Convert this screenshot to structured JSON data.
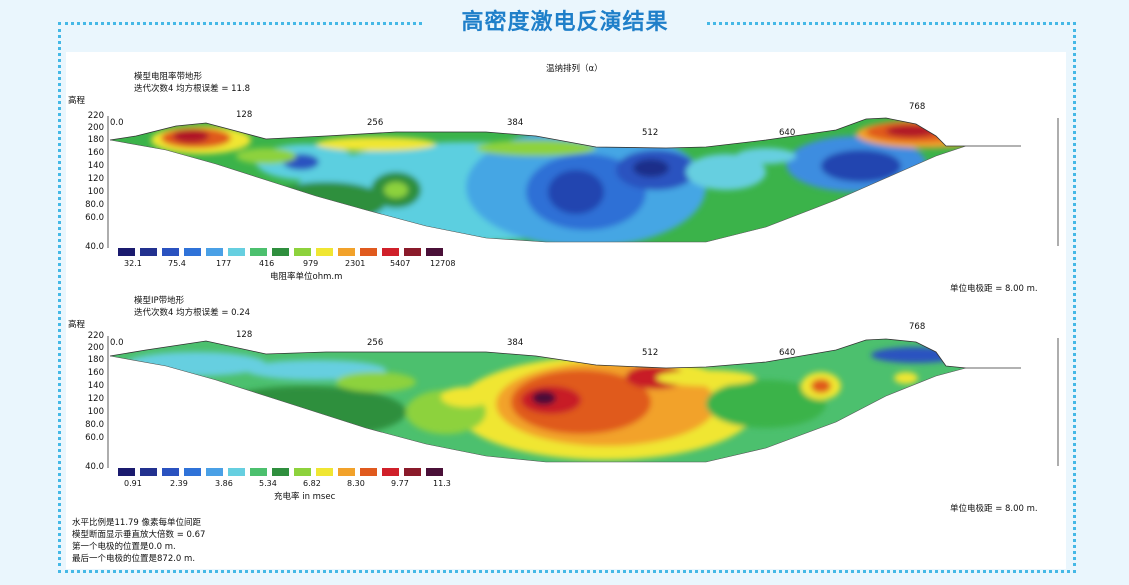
{
  "header": {
    "title": "高密度激电反演结果"
  },
  "figure": {
    "top_caption": "温纳排列（α）",
    "panel1": {
      "model_name": "模型电阻率带地形",
      "iteration": "迭代次数4 均方根误差 = 11.8",
      "elevation_label": "高程",
      "unit_label": "电阻率单位ohm.m",
      "spacing": "单位电极距 = 8.00 m."
    },
    "panel2": {
      "model_name": "模型IP带地形",
      "iteration": "迭代次数4 均方根误差 = 0.24",
      "elevation_label": "高程",
      "unit_label": "充电率 in msec",
      "spacing": "单位电极距 = 8.00 m."
    },
    "footer_notes": [
      "水平比例是11.79 像素每单位间距",
      "模型断面显示垂直放大倍数 = 0.67",
      "第一个电极的位置是0.0  m.",
      "最后一个电极的位置是872.0 m."
    ]
  },
  "chart_data": [
    {
      "type": "heatmap",
      "title": "模型电阻率带地形",
      "ylabel": "高程",
      "y_ticks": [
        "220",
        "200",
        "180",
        "160",
        "140",
        "120",
        "100",
        "80.0",
        "60.0",
        "40.0"
      ],
      "x_ticks": [
        "0.0",
        "128",
        "256",
        "384",
        "512",
        "640",
        "768"
      ],
      "colorbar_label": "电阻率单位ohm.m",
      "colorbar_labels": [
        "32.1",
        "75.4",
        "177",
        "416",
        "979",
        "2301",
        "5407",
        "12708"
      ],
      "colorbar_colors": [
        "#1a1a6e",
        "#22318f",
        "#2a52c0",
        "#2f72d8",
        "#4aa0e6",
        "#66cfe0",
        "#4cc06e",
        "#2f8f3e",
        "#8dd23c",
        "#f0e632",
        "#f2a22a",
        "#e05a1e",
        "#d0202a",
        "#8a1a2a",
        "#4a1038"
      ]
    },
    {
      "type": "heatmap",
      "title": "模型IP带地形",
      "ylabel": "高程",
      "y_ticks": [
        "220",
        "200",
        "180",
        "160",
        "140",
        "120",
        "100",
        "80.0",
        "60.0",
        "40.0"
      ],
      "x_ticks": [
        "0.0",
        "128",
        "256",
        "384",
        "512",
        "640",
        "768"
      ],
      "colorbar_label": "充电率 in msec",
      "colorbar_labels": [
        "0.91",
        "2.39",
        "3.86",
        "5.34",
        "6.82",
        "8.30",
        "9.77",
        "11.3"
      ],
      "colorbar_colors": [
        "#1a1a6e",
        "#22318f",
        "#2a52c0",
        "#2f72d8",
        "#4aa0e6",
        "#66cfe0",
        "#4cc06e",
        "#2f8f3e",
        "#8dd23c",
        "#f0e632",
        "#f2a22a",
        "#e05a1e",
        "#d0202a",
        "#8a1a2a",
        "#4a1038"
      ]
    }
  ]
}
